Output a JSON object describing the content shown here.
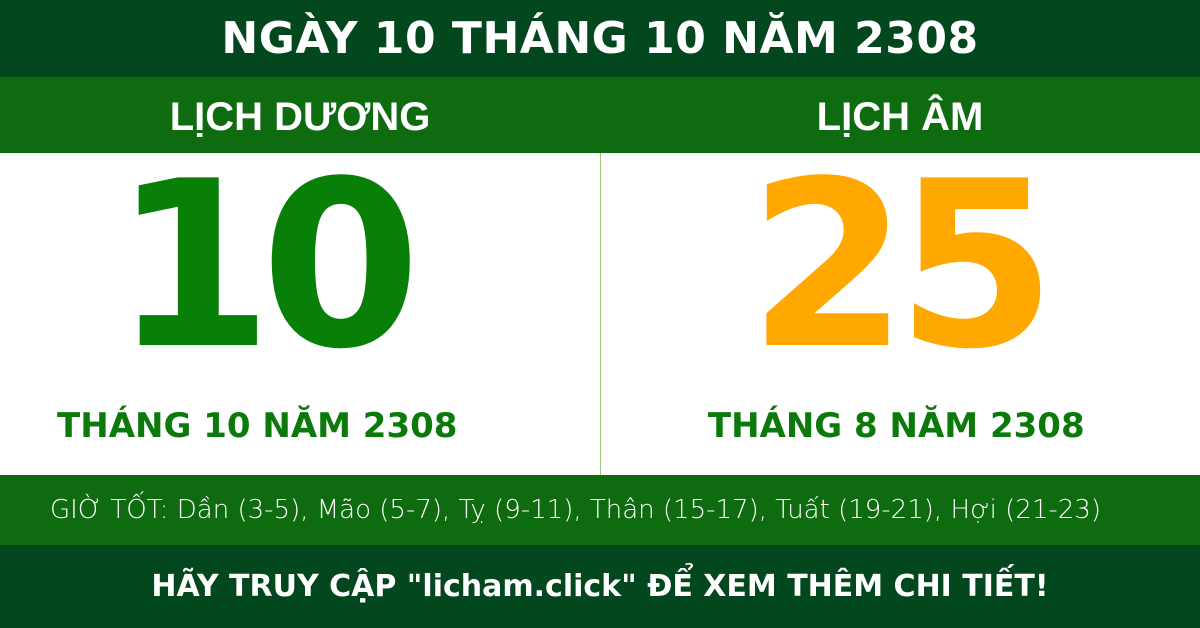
{
  "header": {
    "title": "NGÀY 10 THÁNG 10 NĂM 2308"
  },
  "solar": {
    "label": "LỊCH DƯƠNG",
    "day": "10",
    "month_year": "THÁNG 10 NĂM 2308",
    "color": "#088008"
  },
  "lunar": {
    "label": "LỊCH ÂM",
    "day": "25",
    "month_year": "THÁNG 8 NĂM 2308",
    "color": "#ffa800"
  },
  "good_hours": "GIỜ TỐT: Dần (3-5), Mão (5-7), Tỵ (9-11), Thân (15-17), Tuất (19-21), Hợi (21-23)",
  "footer": {
    "text": "HÃY TRUY CẬP \"licham.click\" ĐỂ XEM THÊM CHI TIẾT!"
  }
}
